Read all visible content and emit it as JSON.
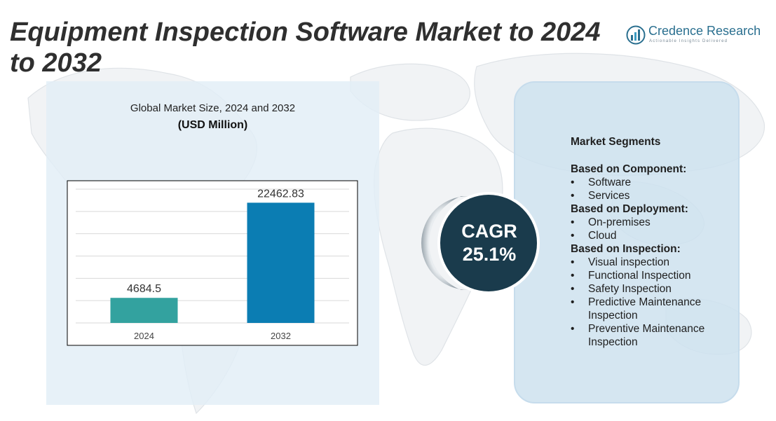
{
  "title": "Equipment Inspection Software Market to 2024 to 2032",
  "logo": {
    "name": "Credence Research",
    "tagline": "Actionable Insights Delivered",
    "icon": "credence-logo-icon"
  },
  "colors": {
    "bar_2024": "#33a29f",
    "bar_2032": "#0b7db3",
    "cagr_circle": "#1a3b4c",
    "panel_bg": "#e2eef7"
  },
  "chart_data": {
    "type": "bar",
    "title": "Global Market Size, 2024 and 2032",
    "subtitle": "(USD Million)",
    "categories": [
      "2024",
      "2032"
    ],
    "values": [
      4684.5,
      22462.83
    ],
    "value_labels": [
      "4684.5",
      "22462.83"
    ],
    "ylim": [
      0,
      25000
    ],
    "grid": true,
    "xlabel": "",
    "ylabel": ""
  },
  "cagr": {
    "label": "CAGR",
    "value": "25.1%"
  },
  "segments": {
    "title": "Market Segments",
    "groups": [
      {
        "title": "Based on Component:",
        "items": [
          "Software",
          "Services"
        ]
      },
      {
        "title": "Based on Deployment:",
        "items": [
          "On-premises",
          "Cloud"
        ]
      },
      {
        "title": "Based on Inspection:",
        "items": [
          "Visual inspection",
          "Functional Inspection",
          "Safety Inspection",
          "Predictive Maintenance Inspection",
          "Preventive Maintenance Inspection"
        ]
      }
    ]
  }
}
